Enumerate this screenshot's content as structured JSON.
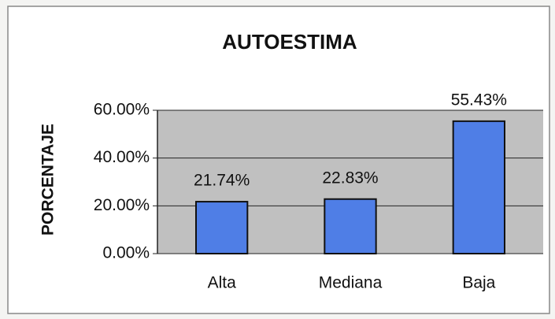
{
  "chart_data": {
    "type": "bar",
    "title": "AUTOESTIMA",
    "y_label": "PORCENTAJE",
    "categories": [
      "Alta",
      "Mediana",
      "Baja"
    ],
    "values": [
      21.74,
      22.83,
      55.43
    ],
    "value_labels": [
      "21.74%",
      "22.83%",
      "55.43%"
    ],
    "color": "#4f7ee6",
    "ylim": [
      0,
      60
    ],
    "yticks": [
      {
        "value": 0,
        "label": "0.00%"
      },
      {
        "value": 20,
        "label": "20.00%"
      },
      {
        "value": 40,
        "label": "40.00%"
      },
      {
        "value": 60,
        "label": "60.00%"
      }
    ],
    "grid": true
  }
}
